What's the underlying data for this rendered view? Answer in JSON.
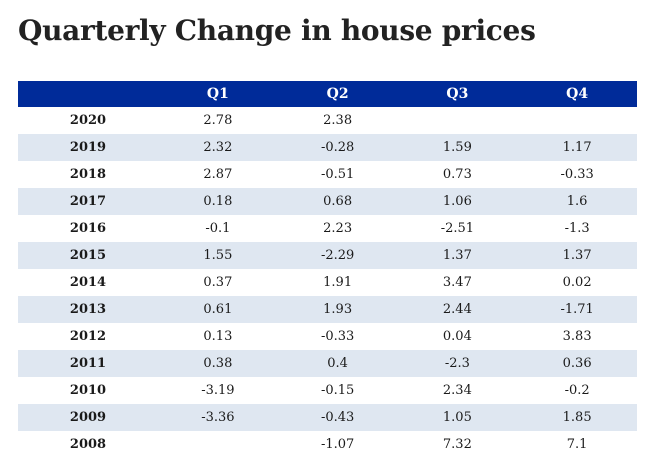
{
  "title": "Quarterly Change in house prices",
  "colors": {
    "header_bg": "#002b99",
    "band_bg": "#dfe7f1",
    "text": "#1a1a1a"
  },
  "chart_data": {
    "type": "table",
    "title": "Quarterly Change in house prices",
    "columns": [
      "",
      "Q1",
      "Q2",
      "Q3",
      "Q4"
    ],
    "rows": [
      {
        "year": "2020",
        "q1": "2.78",
        "q2": "2.38",
        "q3": "",
        "q4": ""
      },
      {
        "year": "2019",
        "q1": "2.32",
        "q2": "-0.28",
        "q3": "1.59",
        "q4": "1.17"
      },
      {
        "year": "2018",
        "q1": "2.87",
        "q2": "-0.51",
        "q3": "0.73",
        "q4": "-0.33"
      },
      {
        "year": "2017",
        "q1": "0.18",
        "q2": "0.68",
        "q3": "1.06",
        "q4": "1.6"
      },
      {
        "year": "2016",
        "q1": "-0.1",
        "q2": "2.23",
        "q3": "-2.51",
        "q4": "-1.3"
      },
      {
        "year": "2015",
        "q1": "1.55",
        "q2": "-2.29",
        "q3": "1.37",
        "q4": "1.37"
      },
      {
        "year": "2014",
        "q1": "0.37",
        "q2": "1.91",
        "q3": "3.47",
        "q4": "0.02"
      },
      {
        "year": "2013",
        "q1": "0.61",
        "q2": "1.93",
        "q3": "2.44",
        "q4": "-1.71"
      },
      {
        "year": "2012",
        "q1": "0.13",
        "q2": "-0.33",
        "q3": "0.04",
        "q4": "3.83"
      },
      {
        "year": "2011",
        "q1": "0.38",
        "q2": "0.4",
        "q3": "-2.3",
        "q4": "0.36"
      },
      {
        "year": "2010",
        "q1": "-3.19",
        "q2": "-0.15",
        "q3": "2.34",
        "q4": "-0.2"
      },
      {
        "year": "2009",
        "q1": "-3.36",
        "q2": "-0.43",
        "q3": "1.05",
        "q4": "1.85"
      },
      {
        "year": "2008",
        "q1": "",
        "q2": "-1.07",
        "q3": "7.32",
        "q4": "7.1"
      }
    ]
  }
}
